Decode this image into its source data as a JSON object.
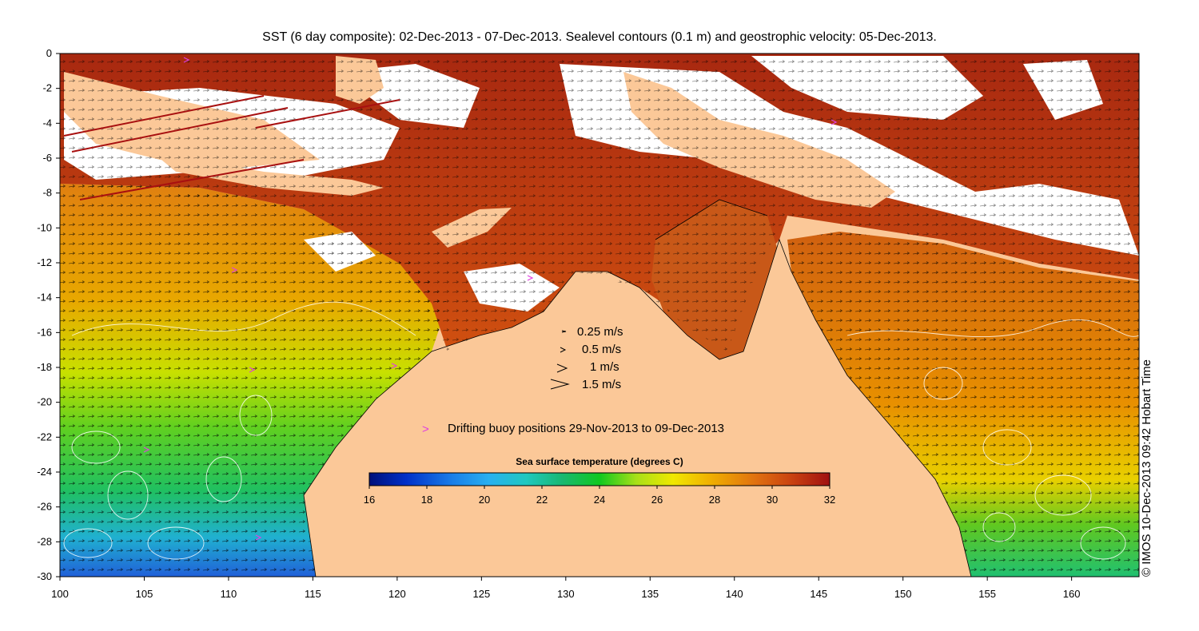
{
  "title": "SST (6 day composite): 02-Dec-2013 - 07-Dec-2013. Sealevel contours (0.1 m) and geostrophic velocity: 05-Dec-2013.",
  "credit": "© IMOS 10-Dec-2013 09:42 Hobart Time",
  "axes": {
    "x_ticks": [
      "100",
      "105",
      "110",
      "115",
      "120",
      "125",
      "130",
      "135",
      "140",
      "145",
      "150",
      "155",
      "160"
    ],
    "y_ticks": [
      "0",
      "-2",
      "-4",
      "-6",
      "-8",
      "-10",
      "-12",
      "-14",
      "-16",
      "-18",
      "-20",
      "-22",
      "-24",
      "-26",
      "-28",
      "-30"
    ]
  },
  "velocity_legend": [
    {
      "label": "0.25 m/s",
      "speed": 0.25
    },
    {
      "label": "0.5 m/s",
      "speed": 0.5
    },
    {
      "label": "1 m/s",
      "speed": 1
    },
    {
      "label": "1.5 m/s",
      "speed": 1.5
    }
  ],
  "buoy_legend": {
    "symbol": ">",
    "label": "Drifting buoy positions 29-Nov-2013 to 09-Dec-2013",
    "color": "#e040e0"
  },
  "colorbar": {
    "title": "Sea surface temperature (degrees C)",
    "min": 16,
    "max": 32,
    "ticks": [
      "16",
      "18",
      "20",
      "22",
      "24",
      "26",
      "28",
      "30",
      "32"
    ]
  },
  "colors": {
    "land": "#fbc898",
    "no_data": "#ffffff",
    "velocity_arrows": "#000000",
    "sealevel_contours": "#ffffff"
  }
}
